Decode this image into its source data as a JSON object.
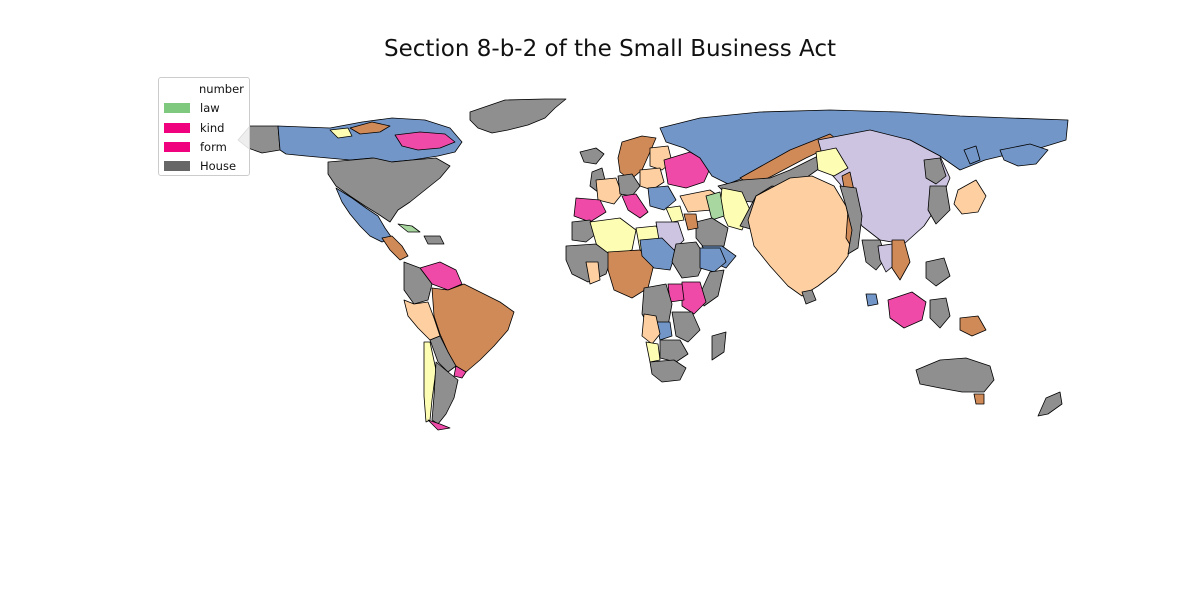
{
  "map": {
    "title": "Section 8-b-2 of the Small Business Act"
  },
  "legend": {
    "title": "number",
    "entries": [
      {
        "label": "law",
        "color": "#7fc97f"
      },
      {
        "label": "kind",
        "color": "#f0027f"
      },
      {
        "label": "form",
        "color": "#f0027f"
      },
      {
        "label": "House",
        "color": "#666666"
      }
    ]
  },
  "palette": {
    "blue": "#7396c8",
    "brown": "#d08a58",
    "peach": "#fdcfa1",
    "gray": "#8f8f8f",
    "pink": "#f04aa8",
    "yellow": "#fdfdb3",
    "lavender": "#cdc4e2",
    "green": "#a8d8a0",
    "outline": "#000000"
  }
}
